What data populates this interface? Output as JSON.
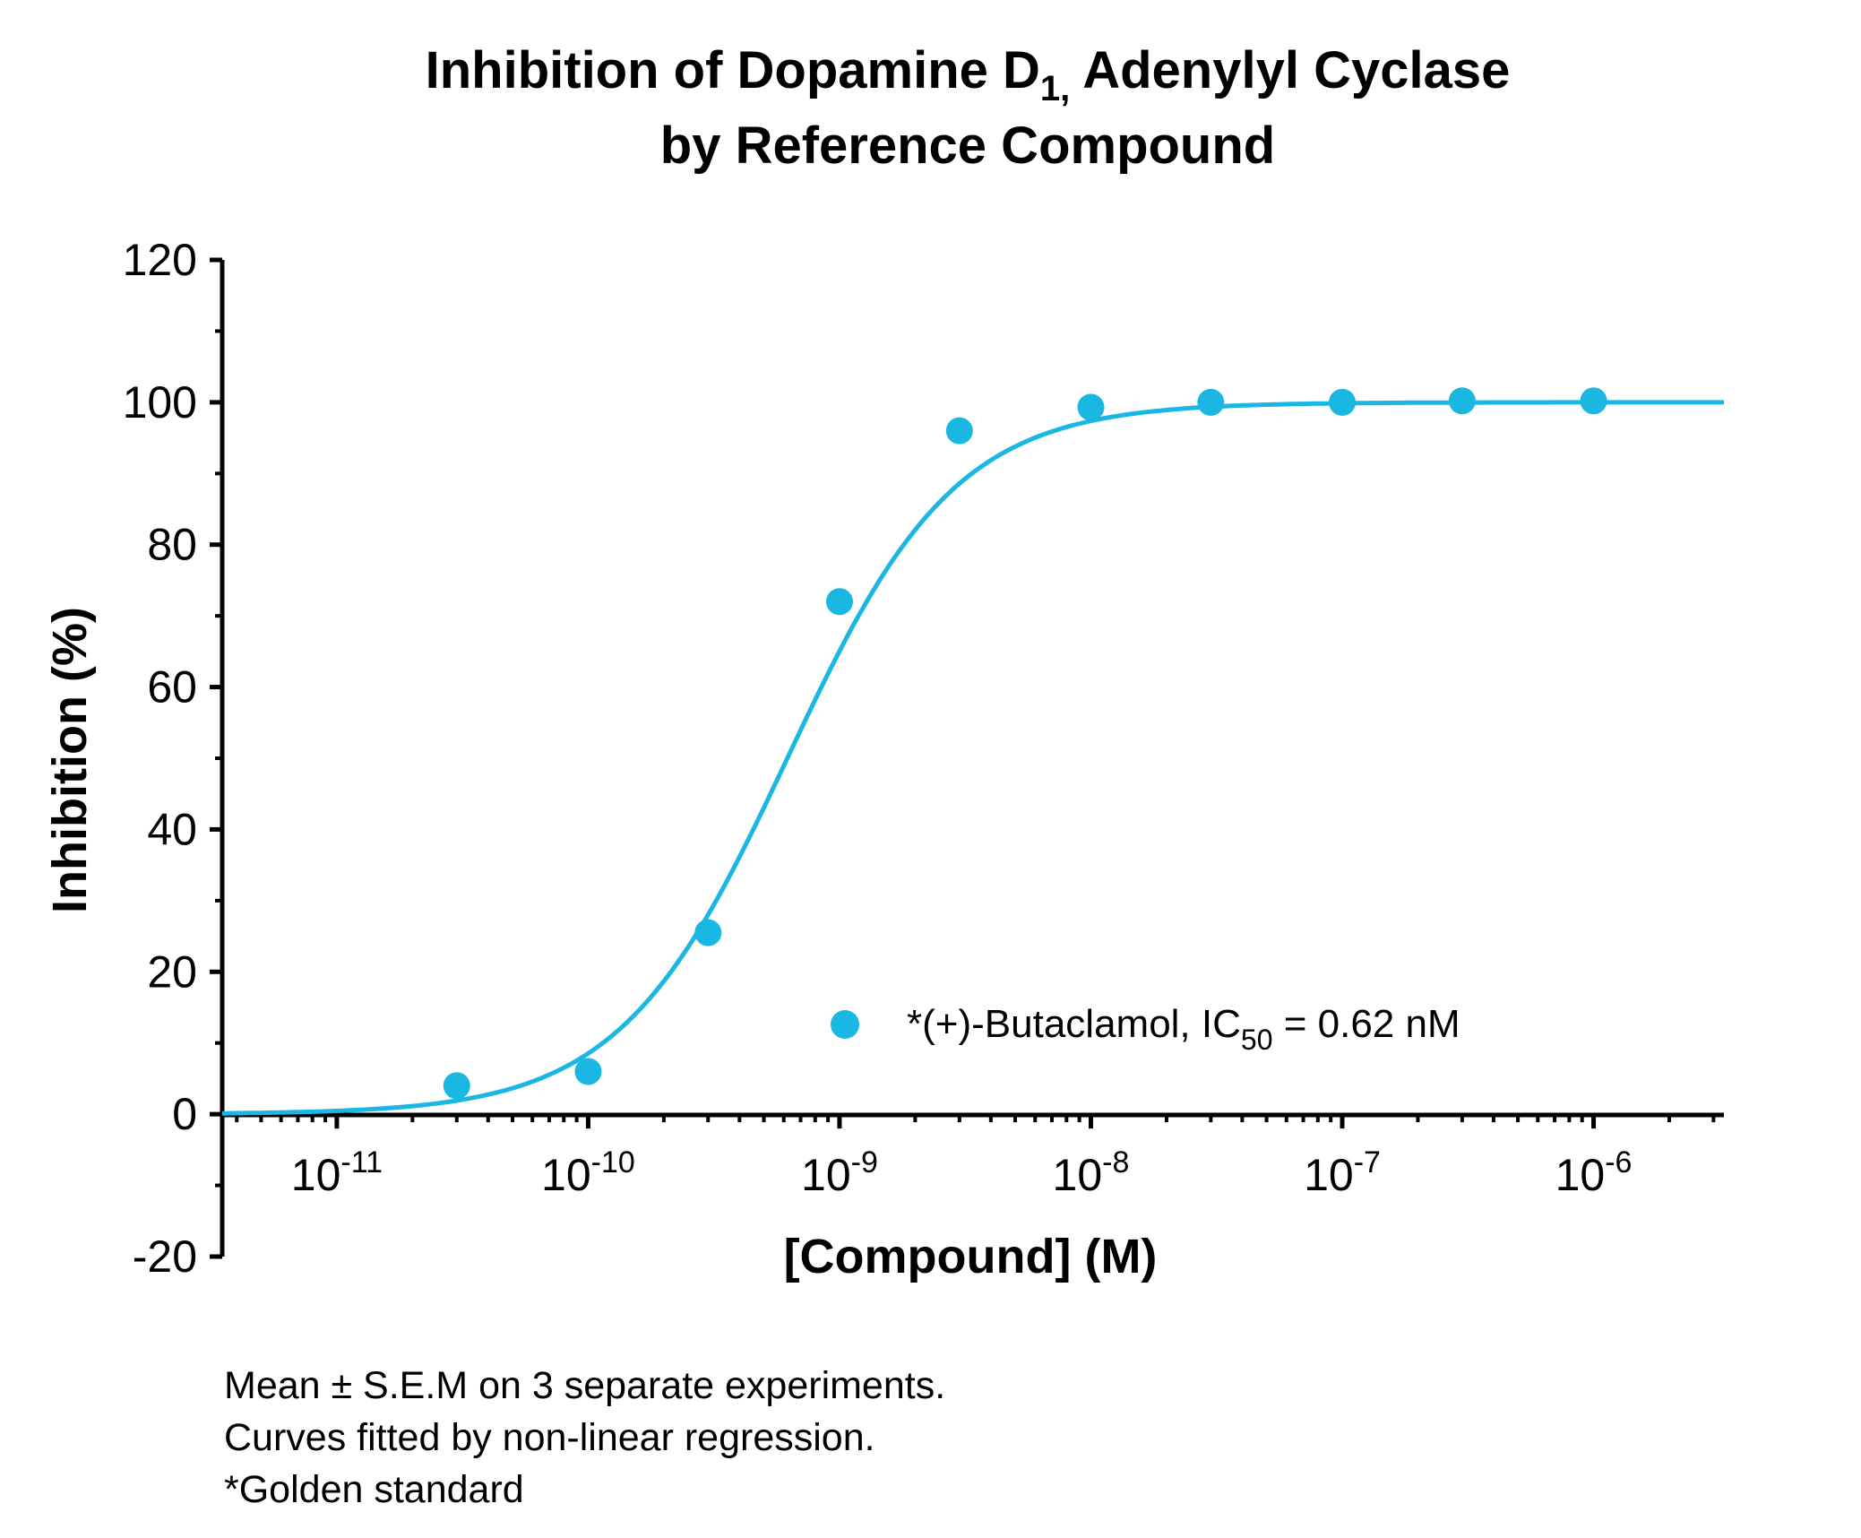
{
  "chart_data": {
    "type": "scatter",
    "title": {
      "line1_prefix": "Inhibition of Dopamine D",
      "line1_sub": "1,",
      "line1_suffix": " Adenylyl Cyclase",
      "line2": "by Reference Compound"
    },
    "xlabel": "[Compound] (M)",
    "ylabel": "Inhibition (%)",
    "x_scale": "log",
    "xlim": [
      3.5e-12,
      3.3e-06
    ],
    "ylim": [
      -20,
      120
    ],
    "y_ticks": [
      {
        "value": -20,
        "label": "-20"
      },
      {
        "value": 0,
        "label": "0"
      },
      {
        "value": 20,
        "label": "20"
      },
      {
        "value": 40,
        "label": "40"
      },
      {
        "value": 60,
        "label": "60"
      },
      {
        "value": 80,
        "label": "80"
      },
      {
        "value": 100,
        "label": "100"
      },
      {
        "value": 120,
        "label": "120"
      }
    ],
    "x_ticks": [
      {
        "value": 1e-11,
        "base": "10",
        "exp": "-11"
      },
      {
        "value": 1e-10,
        "base": "10",
        "exp": "-10"
      },
      {
        "value": 1e-09,
        "base": "10",
        "exp": "-9"
      },
      {
        "value": 1e-08,
        "base": "10",
        "exp": "-8"
      },
      {
        "value": 1e-07,
        "base": "10",
        "exp": "-7"
      },
      {
        "value": 1e-06,
        "base": "10",
        "exp": "-6"
      }
    ],
    "series": [
      {
        "name": "*(+)-Butaclamol",
        "legend_prefix": "*(+)-Butaclamol, IC",
        "legend_sub": "50",
        "legend_suffix": " = 0.62 nM",
        "color": "#1ab7e2",
        "x": [
          3e-11,
          1e-10,
          3e-10,
          1e-09,
          3e-09,
          1e-08,
          3e-08,
          1e-07,
          3e-07,
          1e-06
        ],
        "y": [
          4,
          6,
          25.5,
          72,
          96,
          99.3,
          100,
          100,
          100.2,
          100.2
        ],
        "fit": {
          "model": "four-parameter logistic",
          "ic50": 6.2e-10,
          "bottom": 0,
          "top": 100,
          "hill": 1.3
        }
      }
    ],
    "legend": "lower-right",
    "grid": false
  },
  "footnotes": [
    "Mean ± S.E.M on 3 separate experiments.",
    "Curves fitted by non-linear regression.",
    "*Golden standard"
  ]
}
